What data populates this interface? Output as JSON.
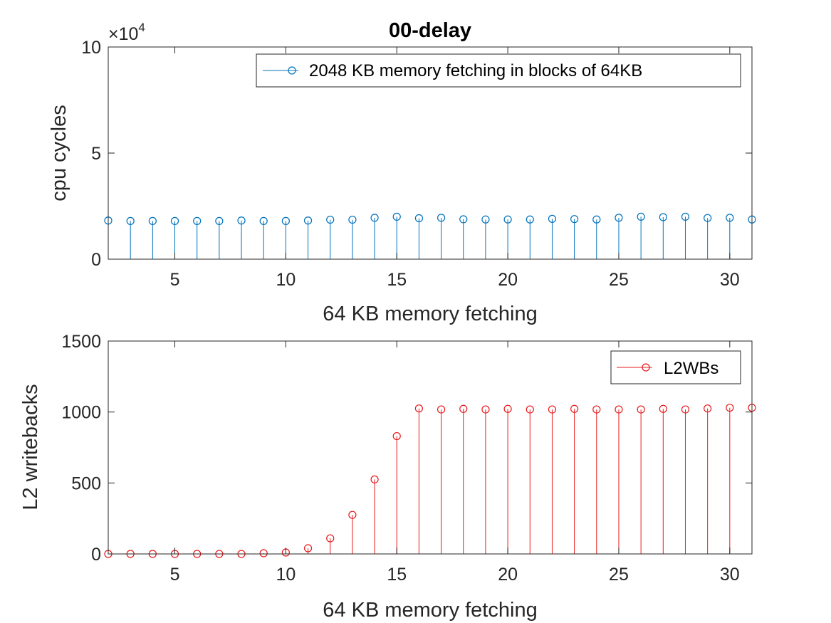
{
  "chart_data": [
    {
      "type": "stem",
      "title": "00-delay",
      "xlabel": "64 KB memory fetching",
      "ylabel": "cpu cycles",
      "xlim": [
        2,
        31
      ],
      "ylim": [
        0,
        100000
      ],
      "xticks": [
        5,
        10,
        15,
        20,
        25,
        30
      ],
      "xtick_labels": [
        "5",
        "10",
        "15",
        "20",
        "25",
        "30"
      ],
      "yticks": [
        0,
        50000,
        100000
      ],
      "ytick_labels": [
        "0",
        "5",
        "10"
      ],
      "y_exponent_base": "×10",
      "y_exponent_power": "4",
      "grid": false,
      "legend_position": "top-right",
      "color": "#0072bd",
      "series": [
        {
          "name": "2048 KB memory fetching in blocks of 64KB",
          "x": [
            2,
            3,
            4,
            5,
            6,
            7,
            8,
            9,
            10,
            11,
            12,
            13,
            14,
            15,
            16,
            17,
            18,
            19,
            20,
            21,
            22,
            23,
            24,
            25,
            26,
            27,
            28,
            29,
            30,
            31
          ],
          "values": [
            18200,
            18000,
            18000,
            18000,
            18000,
            18000,
            18200,
            18000,
            18000,
            18200,
            18600,
            18600,
            19500,
            20000,
            19300,
            19500,
            18800,
            18700,
            18700,
            18700,
            19000,
            18900,
            18700,
            19500,
            20000,
            19800,
            20000,
            19400,
            19500,
            18700
          ]
        }
      ]
    },
    {
      "type": "stem",
      "title": "",
      "xlabel": "64 KB memory fetching",
      "ylabel": "L2 writebacks",
      "xlim": [
        2,
        31
      ],
      "ylim": [
        0,
        1500
      ],
      "xticks": [
        5,
        10,
        15,
        20,
        25,
        30
      ],
      "xtick_labels": [
        "5",
        "10",
        "15",
        "20",
        "25",
        "30"
      ],
      "yticks": [
        0,
        500,
        1000,
        1500
      ],
      "ytick_labels": [
        "0",
        "500",
        "1000",
        "1500"
      ],
      "grid": false,
      "legend_position": "top-right",
      "color": "#e8191c",
      "series": [
        {
          "name": "L2WBs",
          "x": [
            2,
            3,
            4,
            5,
            6,
            7,
            8,
            9,
            10,
            11,
            12,
            13,
            14,
            15,
            16,
            17,
            18,
            19,
            20,
            21,
            22,
            23,
            24,
            25,
            26,
            27,
            28,
            29,
            30,
            31
          ],
          "values": [
            0,
            0,
            0,
            0,
            0,
            0,
            0,
            5,
            10,
            40,
            110,
            275,
            525,
            830,
            1025,
            1018,
            1022,
            1018,
            1022,
            1018,
            1018,
            1022,
            1018,
            1018,
            1018,
            1022,
            1018,
            1025,
            1030,
            1030
          ]
        }
      ]
    }
  ]
}
